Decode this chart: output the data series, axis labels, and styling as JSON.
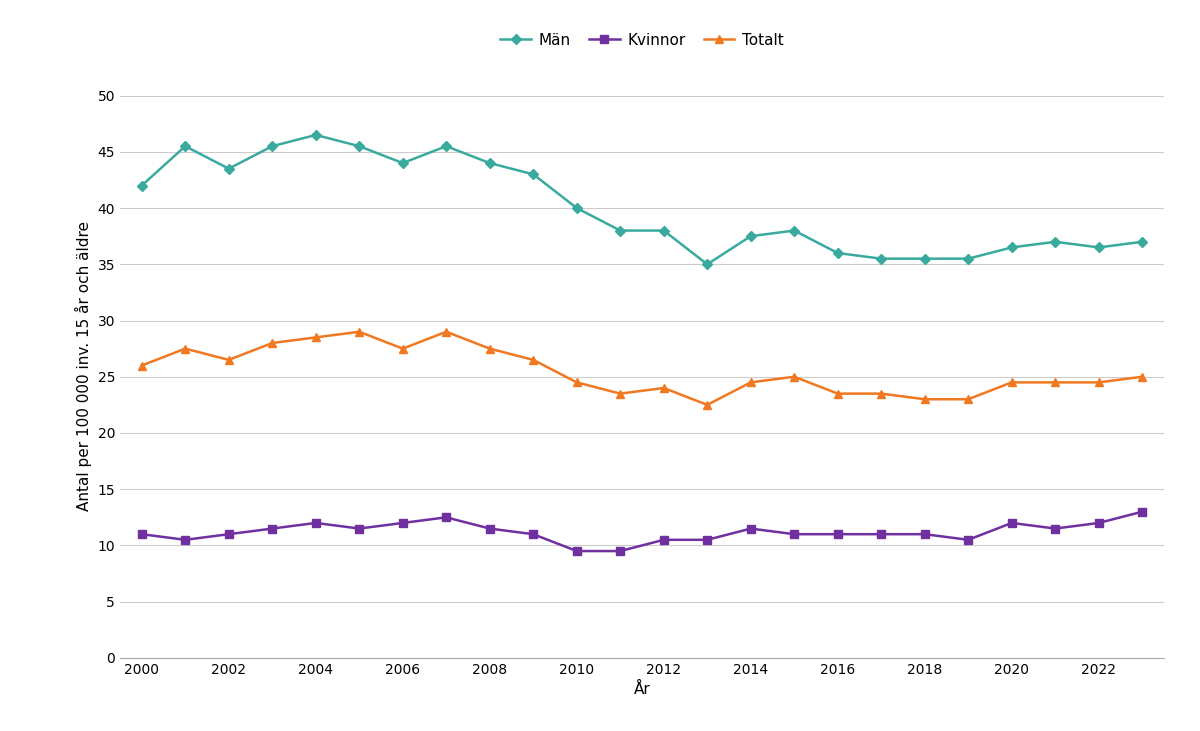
{
  "years": [
    2000,
    2001,
    2002,
    2003,
    2004,
    2005,
    2006,
    2007,
    2008,
    2009,
    2010,
    2011,
    2012,
    2013,
    2014,
    2015,
    2016,
    2017,
    2018,
    2019,
    2020,
    2021,
    2022,
    2023
  ],
  "man": [
    42,
    45.5,
    43.5,
    45.5,
    46.5,
    45.5,
    44,
    45.5,
    44,
    43,
    40,
    38,
    38,
    35,
    37.5,
    38,
    36,
    35.5,
    35.5,
    35.5,
    36.5,
    37,
    36.5,
    37
  ],
  "kvinnor": [
    11,
    10.5,
    11,
    11.5,
    12,
    11.5,
    12,
    12.5,
    11.5,
    11,
    9.5,
    9.5,
    10.5,
    10.5,
    11.5,
    11,
    11,
    11,
    11,
    10.5,
    12,
    11.5,
    12,
    13
  ],
  "totalt": [
    26,
    27.5,
    26.5,
    28,
    28.5,
    29,
    27.5,
    29,
    27.5,
    26.5,
    24.5,
    23.5,
    24,
    22.5,
    24.5,
    25,
    23.5,
    23.5,
    23,
    23,
    24.5,
    24.5,
    24.5,
    25
  ],
  "man_color": "#3aaa9e",
  "kvinnor_color": "#7030a0",
  "totalt_color": "#f07820",
  "man_label": "Män",
  "kvinnor_label": "Kvinnor",
  "totalt_label": "Totalt",
  "ylabel": "Antal per 100 000 inv. 15 år och äldre",
  "xlabel": "År",
  "ylim": [
    0,
    52
  ],
  "yticks": [
    0,
    5,
    10,
    15,
    20,
    25,
    30,
    35,
    40,
    45,
    50
  ],
  "background_color": "#ffffff",
  "grid_color": "#cccccc",
  "label_fontsize": 11,
  "tick_fontsize": 10,
  "legend_fontsize": 11,
  "line_width": 1.8,
  "marker_size": 6
}
